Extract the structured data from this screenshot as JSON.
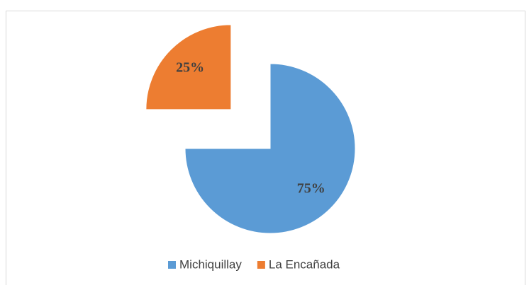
{
  "chart_data": {
    "type": "pie",
    "categories": [
      "Michiquillay",
      "La Encañada"
    ],
    "values": [
      75,
      25
    ],
    "value_labels": [
      "75%",
      "25%"
    ],
    "colors": [
      "#5b9bd5",
      "#ed7d31"
    ],
    "legend": "bottom"
  }
}
